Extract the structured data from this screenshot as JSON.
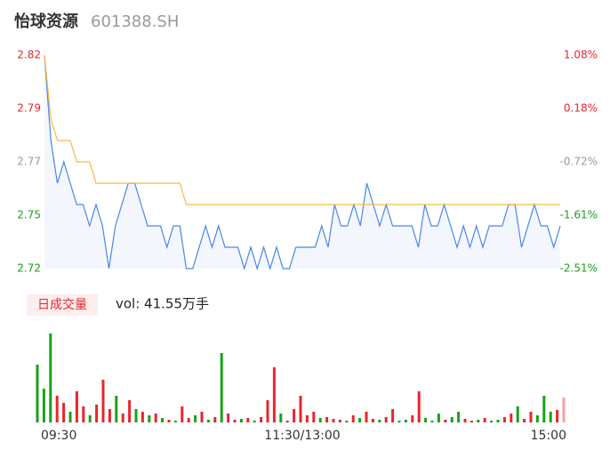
{
  "header": {
    "name": "怡球资源",
    "code": "601388.SH"
  },
  "chart_data": [
    {
      "type": "line",
      "xlim": [
        0,
        240
      ],
      "xticks": [
        {
          "value": 0,
          "label": "09:30"
        },
        {
          "value": 120,
          "label": "11:30/13:00"
        },
        {
          "value": 240,
          "label": "15:00"
        }
      ],
      "ylim": [
        2.72,
        2.82
      ],
      "yticks": [
        {
          "value": 2.82,
          "label": "2.82"
        },
        {
          "value": 2.795,
          "label": "2.79"
        },
        {
          "value": 2.77,
          "label": "2.77"
        },
        {
          "value": 2.745,
          "label": "2.75"
        },
        {
          "value": 2.72,
          "label": "2.72"
        }
      ],
      "ytick_colors": [
        "#e8262c",
        "#e8262c",
        "#999999",
        "#1aa11a",
        "#1aa11a"
      ],
      "y2lim": [
        -2.51,
        1.08
      ],
      "y2ticks": [
        {
          "value": 1.08,
          "label": "1.08%"
        },
        {
          "value": 0.1825,
          "label": "0.18%"
        },
        {
          "value": -0.715,
          "label": "-0.72%"
        },
        {
          "value": -1.6125,
          "label": "-1.61%"
        },
        {
          "value": -2.51,
          "label": "-2.51%"
        }
      ],
      "x": [
        0,
        3,
        6,
        9,
        12,
        15,
        18,
        21,
        24,
        27,
        30,
        33,
        36,
        39,
        42,
        45,
        48,
        51,
        54,
        57,
        60,
        63,
        66,
        69,
        72,
        75,
        78,
        81,
        84,
        87,
        90,
        93,
        96,
        99,
        102,
        105,
        108,
        111,
        114,
        117,
        120,
        123,
        126,
        129,
        132,
        135,
        138,
        141,
        144,
        147,
        150,
        153,
        156,
        159,
        162,
        165,
        168,
        171,
        174,
        177,
        180,
        183,
        186,
        189,
        192,
        195,
        198,
        201,
        204,
        207,
        210,
        213,
        216,
        219,
        222,
        225,
        228,
        231,
        234,
        237,
        240
      ],
      "series": [
        {
          "color": "#4a86e8",
          "area_color": "#f3f6fd",
          "values": [
            2.82,
            2.78,
            2.76,
            2.77,
            2.76,
            2.75,
            2.75,
            2.74,
            2.75,
            2.74,
            2.72,
            2.74,
            2.75,
            2.76,
            2.76,
            2.75,
            2.74,
            2.74,
            2.74,
            2.73,
            2.74,
            2.74,
            2.72,
            2.72,
            2.73,
            2.74,
            2.73,
            2.74,
            2.73,
            2.73,
            2.73,
            2.72,
            2.73,
            2.72,
            2.73,
            2.72,
            2.73,
            2.72,
            2.72,
            2.73,
            2.73,
            2.73,
            2.73,
            2.74,
            2.73,
            2.75,
            2.74,
            2.74,
            2.75,
            2.74,
            2.76,
            2.75,
            2.74,
            2.75,
            2.74,
            2.74,
            2.74,
            2.74,
            2.73,
            2.75,
            2.74,
            2.74,
            2.75,
            2.74,
            2.73,
            2.74,
            2.73,
            2.74,
            2.73,
            2.74,
            2.74,
            2.74,
            2.75,
            2.75,
            2.73,
            2.74,
            2.75,
            2.74,
            2.74,
            2.73,
            2.74
          ]
        },
        {
          "color": "#f5b945",
          "values": [
            2.82,
            2.79,
            2.78,
            2.78,
            2.78,
            2.77,
            2.77,
            2.77,
            2.76,
            2.76,
            2.76,
            2.76,
            2.76,
            2.76,
            2.76,
            2.76,
            2.76,
            2.76,
            2.76,
            2.76,
            2.76,
            2.76,
            2.75,
            2.75,
            2.75,
            2.75,
            2.75,
            2.75,
            2.75,
            2.75,
            2.75,
            2.75,
            2.75,
            2.75,
            2.75,
            2.75,
            2.75,
            2.75,
            2.75,
            2.75,
            2.75,
            2.75,
            2.75,
            2.75,
            2.75,
            2.75,
            2.75,
            2.75,
            2.75,
            2.75,
            2.75,
            2.75,
            2.75,
            2.75,
            2.75,
            2.75,
            2.75,
            2.75,
            2.75,
            2.75,
            2.75,
            2.75,
            2.75,
            2.75,
            2.75,
            2.75,
            2.75,
            2.75,
            2.75,
            2.75,
            2.75,
            2.75,
            2.75,
            2.75,
            2.75,
            2.75,
            2.75,
            2.75,
            2.75,
            2.75,
            2.75
          ]
        }
      ]
    },
    {
      "type": "bar",
      "label": "日成交量",
      "summary": "vol: 41.55万手",
      "values": [
        65,
        38,
        100,
        30,
        22,
        12,
        35,
        18,
        8,
        20,
        48,
        15,
        30,
        10,
        25,
        15,
        12,
        8,
        10,
        5,
        3,
        2,
        18,
        5,
        8,
        12,
        3,
        6,
        78,
        10,
        3,
        4,
        5,
        2,
        6,
        25,
        62,
        10,
        2,
        15,
        30,
        8,
        12,
        5,
        6,
        4,
        3,
        2,
        8,
        5,
        12,
        4,
        3,
        6,
        15,
        2,
        3,
        8,
        35,
        5,
        2,
        10,
        3,
        6,
        12,
        4,
        2,
        3,
        5,
        2,
        3,
        6,
        10,
        18,
        4,
        12,
        8,
        30,
        12,
        14,
        28
      ],
      "colors": [
        "#1aa11a",
        "#1aa11a",
        "#1aa11a",
        "#e8262c",
        "#e8262c",
        "#1aa11a",
        "#e8262c",
        "#e8262c",
        "#1aa11a",
        "#e8262c",
        "#e8262c",
        "#e8262c",
        "#1aa11a",
        "#e8262c",
        "#e8262c",
        "#1aa11a",
        "#e8262c",
        "#1aa11a",
        "#e8262c",
        "#1aa11a",
        "#e8262c",
        "#1aa11a",
        "#e8262c",
        "#e8262c",
        "#1aa11a",
        "#e8262c",
        "#1aa11a",
        "#e8262c",
        "#1aa11a",
        "#e8262c",
        "#e8262c",
        "#1aa11a",
        "#e8262c",
        "#1aa11a",
        "#e8262c",
        "#e8262c",
        "#e8262c",
        "#1aa11a",
        "#e8262c",
        "#e8262c",
        "#e8262c",
        "#e8262c",
        "#e8262c",
        "#1aa11a",
        "#e8262c",
        "#e8262c",
        "#e8262c",
        "#1aa11a",
        "#e8262c",
        "#1aa11a",
        "#e8262c",
        "#e8262c",
        "#1aa11a",
        "#e8262c",
        "#e8262c",
        "#1aa11a",
        "#1aa11a",
        "#e8262c",
        "#e8262c",
        "#1aa11a",
        "#1aa11a",
        "#1aa11a",
        "#e8262c",
        "#1aa11a",
        "#1aa11a",
        "#e8262c",
        "#e8262c",
        "#1aa11a",
        "#e8262c",
        "#1aa11a",
        "#1aa11a",
        "#e8262c",
        "#e8262c",
        "#1aa11a",
        "#e8262c",
        "#e8262c",
        "#1aa11a",
        "#1aa11a",
        "#1aa11a",
        "#e8262c",
        "#f4a0a0"
      ]
    }
  ]
}
